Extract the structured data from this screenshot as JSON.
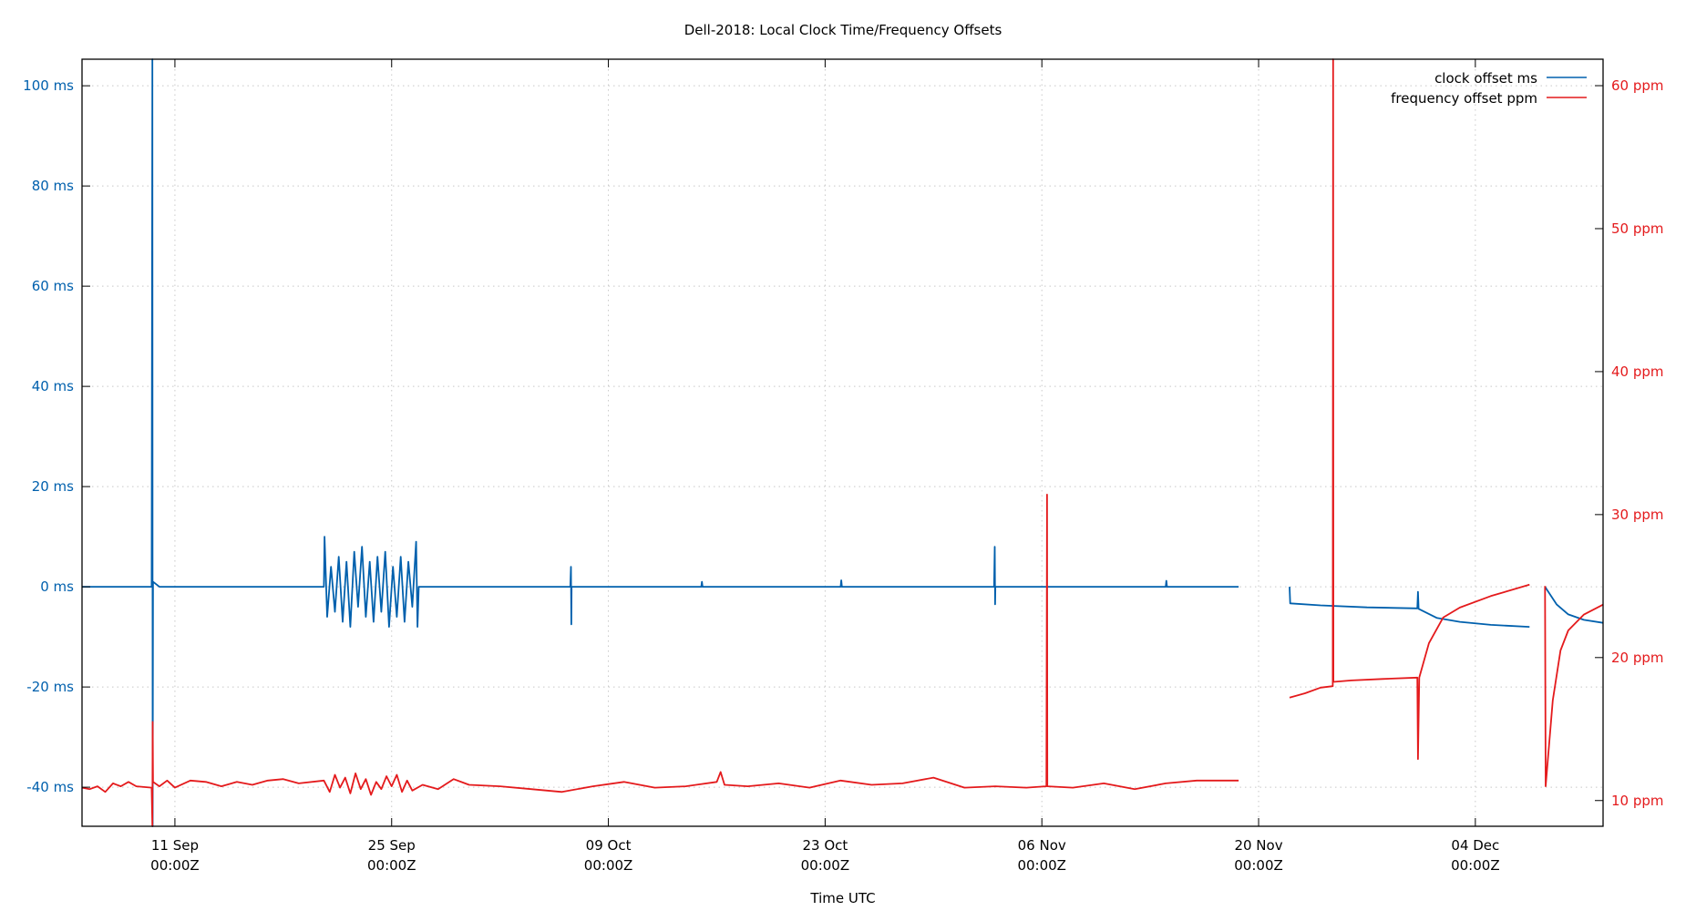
{
  "chart_data": {
    "type": "line",
    "title": "Dell-2018: Local Clock Time/Frequency Offsets",
    "xlabel": "Time UTC",
    "ylabel": "",
    "y2label": "",
    "xlim": [
      "2018-09-05T00:00",
      "2018-12-12T06:00"
    ],
    "ylim": [
      -47.8,
      105.3
    ],
    "y2lim": [
      8.2,
      61.85
    ],
    "grid": true,
    "legend_position": "top-right",
    "x_ticks": [
      {
        "date": "2018-09-11T00:00",
        "line1": "11 Sep",
        "line2": "00:00Z"
      },
      {
        "date": "2018-09-25T00:00",
        "line1": "25 Sep",
        "line2": "00:00Z"
      },
      {
        "date": "2018-10-09T00:00",
        "line1": "09 Oct",
        "line2": "00:00Z"
      },
      {
        "date": "2018-10-23T00:00",
        "line1": "23 Oct",
        "line2": "00:00Z"
      },
      {
        "date": "2018-11-06T00:00",
        "line1": "06 Nov",
        "line2": "00:00Z"
      },
      {
        "date": "2018-11-20T00:00",
        "line1": "20 Nov",
        "line2": "00:00Z"
      },
      {
        "date": "2018-12-04T00:00",
        "line1": "04 Dec",
        "line2": "00:00Z"
      }
    ],
    "y_ticks": [
      {
        "value": -40,
        "label": "-40 ms"
      },
      {
        "value": -20,
        "label": "-20 ms"
      },
      {
        "value": 0,
        "label": "0 ms"
      },
      {
        "value": 20,
        "label": "20 ms"
      },
      {
        "value": 40,
        "label": "40 ms"
      },
      {
        "value": 60,
        "label": "60 ms"
      },
      {
        "value": 80,
        "label": "80 ms"
      },
      {
        "value": 100,
        "label": "100 ms"
      }
    ],
    "y2_ticks": [
      {
        "value": 10,
        "label": "10 ppm"
      },
      {
        "value": 20,
        "label": "20 ppm"
      },
      {
        "value": 30,
        "label": "30 ppm"
      },
      {
        "value": 40,
        "label": "40 ppm"
      },
      {
        "value": 50,
        "label": "50 ppm"
      },
      {
        "value": 60,
        "label": "60 ppm"
      }
    ],
    "series": [
      {
        "name": "clock offset ms",
        "axis": "y",
        "color": "#0060ad",
        "segments": [
          [
            [
              "2018-09-05T00:00",
              0.0
            ],
            [
              "2018-09-09T12:00",
              0.0
            ],
            [
              "2018-09-09T13:00",
              105.3
            ],
            [
              "2018-09-09T13:30",
              -47.8
            ],
            [
              "2018-09-09T14:00",
              1.0
            ],
            [
              "2018-09-10T00:00",
              0.0
            ],
            [
              "2018-09-20T15:00",
              0.0
            ],
            [
              "2018-09-20T16:00",
              10
            ],
            [
              "2018-09-20T20:00",
              -6
            ],
            [
              "2018-09-21T02:00",
              4
            ],
            [
              "2018-09-21T08:00",
              -5
            ],
            [
              "2018-09-21T14:00",
              6
            ],
            [
              "2018-09-21T20:00",
              -7
            ],
            [
              "2018-09-22T02:00",
              5
            ],
            [
              "2018-09-22T08:00",
              -8
            ],
            [
              "2018-09-22T14:00",
              7
            ],
            [
              "2018-09-22T20:00",
              -4
            ],
            [
              "2018-09-23T02:00",
              8
            ],
            [
              "2018-09-23T08:00",
              -6
            ],
            [
              "2018-09-23T14:00",
              5
            ],
            [
              "2018-09-23T20:00",
              -7
            ],
            [
              "2018-09-24T02:00",
              6
            ],
            [
              "2018-09-24T08:00",
              -5
            ],
            [
              "2018-09-24T14:00",
              7
            ],
            [
              "2018-09-24T20:00",
              -8
            ],
            [
              "2018-09-25T02:00",
              4
            ],
            [
              "2018-09-25T08:00",
              -6
            ],
            [
              "2018-09-25T14:00",
              6
            ],
            [
              "2018-09-25T20:00",
              -7
            ],
            [
              "2018-09-26T02:00",
              5
            ],
            [
              "2018-09-26T08:00",
              -4
            ],
            [
              "2018-09-26T14:00",
              9
            ],
            [
              "2018-09-26T16:00",
              -8
            ],
            [
              "2018-09-26T18:00",
              0.0
            ],
            [
              "2018-10-06T13:00",
              0.0
            ],
            [
              "2018-10-06T14:00",
              4
            ],
            [
              "2018-10-06T14:30",
              -7.5
            ],
            [
              "2018-10-06T15:00",
              0.0
            ],
            [
              "2018-10-15T00:00",
              0.0
            ],
            [
              "2018-10-15T01:00",
              1.0
            ],
            [
              "2018-10-15T02:00",
              0.0
            ],
            [
              "2018-10-24T00:00",
              0.0
            ],
            [
              "2018-10-24T01:00",
              1.3
            ],
            [
              "2018-10-24T02:00",
              0.0
            ],
            [
              "2018-11-02T22:00",
              0.0
            ],
            [
              "2018-11-02T23:00",
              8
            ],
            [
              "2018-11-02T23:30",
              -3.5
            ],
            [
              "2018-11-03T00:00",
              0.0
            ],
            [
              "2018-11-14T00:00",
              0.0
            ],
            [
              "2018-11-14T01:00",
              1.2
            ],
            [
              "2018-11-14T02:00",
              0.0
            ],
            [
              "2018-11-18T17:00",
              0.0
            ]
          ],
          [
            [
              "2018-11-22T00:00",
              0.0
            ],
            [
              "2018-11-22T01:00",
              -3.3
            ],
            [
              "2018-11-24T00:00",
              -3.7
            ],
            [
              "2018-11-27T00:00",
              -4.1
            ],
            [
              "2018-11-30T06:00",
              -4.3
            ],
            [
              "2018-11-30T07:00",
              -1.0
            ],
            [
              "2018-11-30T08:00",
              -4.4
            ],
            [
              "2018-12-01T12:00",
              -6.2
            ],
            [
              "2018-12-03T00:00",
              -7.0
            ],
            [
              "2018-12-05T00:00",
              -7.6
            ],
            [
              "2018-12-07T12:00",
              -8.0
            ]
          ],
          [
            [
              "2018-12-08T12:00",
              0.0
            ],
            [
              "2018-12-09T06:00",
              -3.5
            ],
            [
              "2018-12-10T00:00",
              -5.5
            ],
            [
              "2018-12-11T00:00",
              -6.6
            ],
            [
              "2018-12-12T06:00",
              -7.2
            ]
          ]
        ]
      },
      {
        "name": "frequency offset ppm",
        "axis": "y2",
        "color": "#e41a1c",
        "segments": [
          [
            [
              "2018-09-05T00:00",
              10.9
            ],
            [
              "2018-09-05T12:00",
              10.8
            ],
            [
              "2018-09-06T00:00",
              11.0
            ],
            [
              "2018-09-06T12:00",
              10.6
            ],
            [
              "2018-09-07T00:00",
              11.2
            ],
            [
              "2018-09-07T12:00",
              11.0
            ],
            [
              "2018-09-08T00:00",
              11.3
            ],
            [
              "2018-09-08T12:00",
              11.0
            ],
            [
              "2018-09-09T12:00",
              10.9
            ],
            [
              "2018-09-09T13:00",
              8.2
            ],
            [
              "2018-09-09T13:30",
              15.5
            ],
            [
              "2018-09-09T14:00",
              11.3
            ],
            [
              "2018-09-10T00:00",
              11.0
            ],
            [
              "2018-09-10T12:00",
              11.4
            ],
            [
              "2018-09-11T00:00",
              10.9
            ],
            [
              "2018-09-12T00:00",
              11.4
            ],
            [
              "2018-09-13T00:00",
              11.3
            ],
            [
              "2018-09-14T00:00",
              11.0
            ],
            [
              "2018-09-15T00:00",
              11.3
            ],
            [
              "2018-09-16T00:00",
              11.1
            ],
            [
              "2018-09-17T00:00",
              11.4
            ],
            [
              "2018-09-18T00:00",
              11.5
            ],
            [
              "2018-09-19T00:00",
              11.2
            ],
            [
              "2018-09-20T15:00",
              11.4
            ],
            [
              "2018-09-21T00:00",
              10.6
            ],
            [
              "2018-09-21T08:00",
              11.8
            ],
            [
              "2018-09-21T16:00",
              10.9
            ],
            [
              "2018-09-22T00:00",
              11.6
            ],
            [
              "2018-09-22T08:00",
              10.5
            ],
            [
              "2018-09-22T16:00",
              11.9
            ],
            [
              "2018-09-23T00:00",
              10.8
            ],
            [
              "2018-09-23T08:00",
              11.5
            ],
            [
              "2018-09-23T16:00",
              10.4
            ],
            [
              "2018-09-24T00:00",
              11.3
            ],
            [
              "2018-09-24T08:00",
              10.8
            ],
            [
              "2018-09-24T16:00",
              11.7
            ],
            [
              "2018-09-25T00:00",
              11.0
            ],
            [
              "2018-09-25T08:00",
              11.8
            ],
            [
              "2018-09-25T16:00",
              10.6
            ],
            [
              "2018-09-26T00:00",
              11.4
            ],
            [
              "2018-09-26T08:00",
              10.7
            ],
            [
              "2018-09-27T00:00",
              11.1
            ],
            [
              "2018-09-28T00:00",
              10.8
            ],
            [
              "2018-09-29T00:00",
              11.5
            ],
            [
              "2018-09-30T00:00",
              11.1
            ],
            [
              "2018-10-02T00:00",
              11.0
            ],
            [
              "2018-10-04T00:00",
              10.8
            ],
            [
              "2018-10-06T00:00",
              10.6
            ],
            [
              "2018-10-08T00:00",
              11.0
            ],
            [
              "2018-10-10T00:00",
              11.3
            ],
            [
              "2018-10-12T00:00",
              10.9
            ],
            [
              "2018-10-14T00:00",
              11.0
            ],
            [
              "2018-10-16T00:00",
              11.3
            ],
            [
              "2018-10-16T06:00",
              12.0
            ],
            [
              "2018-10-16T12:00",
              11.1
            ],
            [
              "2018-10-18T00:00",
              11.0
            ],
            [
              "2018-10-20T00:00",
              11.2
            ],
            [
              "2018-10-22T00:00",
              10.9
            ],
            [
              "2018-10-24T00:00",
              11.4
            ],
            [
              "2018-10-26T00:00",
              11.1
            ],
            [
              "2018-10-28T00:00",
              11.2
            ],
            [
              "2018-10-30T00:00",
              11.6
            ],
            [
              "2018-11-01T00:00",
              10.9
            ],
            [
              "2018-11-03T00:00",
              11.0
            ],
            [
              "2018-11-05T00:00",
              10.9
            ],
            [
              "2018-11-06T07:00",
              11.0
            ],
            [
              "2018-11-06T08:00",
              31.4
            ],
            [
              "2018-11-06T08:30",
              11.0
            ],
            [
              "2018-11-08T00:00",
              10.9
            ],
            [
              "2018-11-10T00:00",
              11.2
            ],
            [
              "2018-11-12T00:00",
              10.8
            ],
            [
              "2018-11-14T00:00",
              11.2
            ],
            [
              "2018-11-16T00:00",
              11.4
            ],
            [
              "2018-11-18T17:00",
              11.4
            ]
          ],
          [
            [
              "2018-11-22T00:00",
              17.2
            ],
            [
              "2018-11-23T00:00",
              17.5
            ],
            [
              "2018-11-24T00:00",
              17.9
            ],
            [
              "2018-11-24T19:00",
              18.0
            ],
            [
              "2018-11-24T19:30",
              61.85
            ],
            [
              "2018-11-24T20:00",
              18.3
            ],
            [
              "2018-11-26T00:00",
              18.4
            ],
            [
              "2018-11-28T00:00",
              18.5
            ],
            [
              "2018-11-30T06:00",
              18.6
            ],
            [
              "2018-11-30T07:00",
              12.9
            ],
            [
              "2018-11-30T09:00",
              18.6
            ],
            [
              "2018-12-01T00:00",
              21.0
            ],
            [
              "2018-12-01T22:00",
              22.8
            ],
            [
              "2018-12-03T00:00",
              23.5
            ],
            [
              "2018-12-05T00:00",
              24.3
            ],
            [
              "2018-12-07T12:00",
              25.1
            ]
          ],
          [
            [
              "2018-12-08T12:00",
              25.0
            ],
            [
              "2018-12-08T13:00",
              11.0
            ],
            [
              "2018-12-09T00:00",
              17.0
            ],
            [
              "2018-12-09T12:00",
              20.5
            ],
            [
              "2018-12-10T00:00",
              21.9
            ],
            [
              "2018-12-11T00:00",
              23.0
            ],
            [
              "2018-12-12T06:00",
              23.7
            ]
          ]
        ]
      }
    ]
  }
}
